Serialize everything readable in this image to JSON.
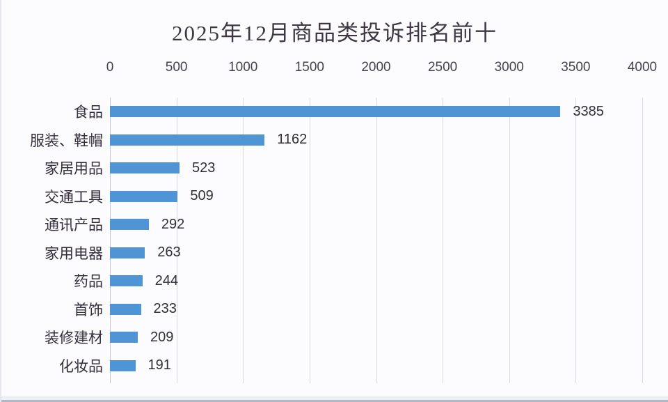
{
  "chart_data": {
    "type": "bar",
    "orientation": "horizontal",
    "title": "2025年12月商品类投诉排名前十",
    "categories": [
      "食品",
      "服装、鞋帽",
      "家居用品",
      "交通工具",
      "通讯产品",
      "家用电器",
      "药品",
      "首饰",
      "装修建材",
      "化妆品"
    ],
    "values": [
      3385,
      1162,
      523,
      509,
      292,
      263,
      244,
      233,
      209,
      191
    ],
    "xlabel": "",
    "ylabel": "",
    "xlim": [
      0,
      4000
    ],
    "x_ticks": [
      0,
      500,
      1000,
      1500,
      2000,
      2500,
      3000,
      3500,
      4000
    ],
    "axis_position": "top",
    "grid": true,
    "legend_position": "none",
    "colors": {
      "bar": "#4f94d5",
      "gridline": "#d9d9e2",
      "axis_line": "#c9c9d4",
      "title_text": "#3d3744",
      "tick_text": "#45424e",
      "category_text": "#332d3c",
      "value_text": "#322e38",
      "background": "#fcfcfe"
    }
  }
}
